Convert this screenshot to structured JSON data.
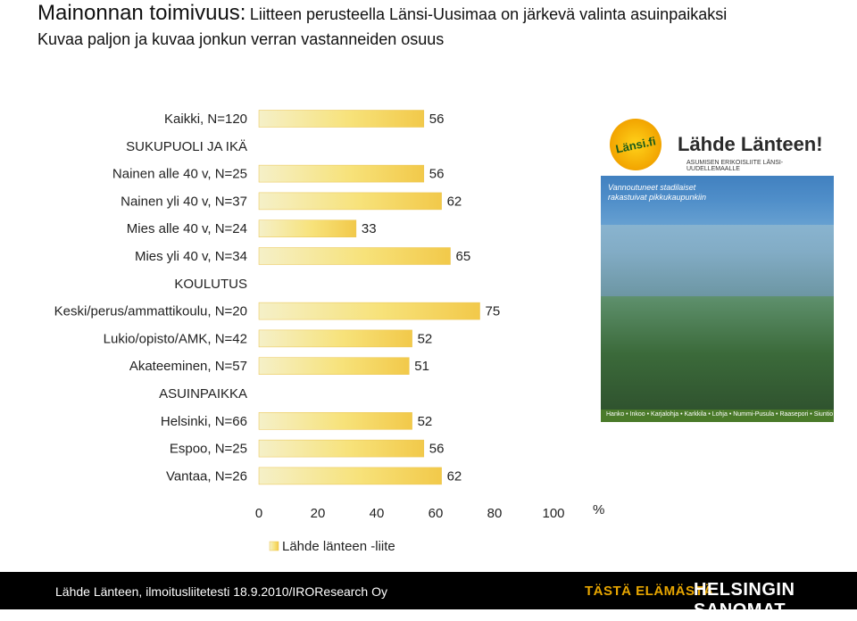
{
  "header": {
    "title_main": "Mainonnan toimivuus:",
    "title_sub": "Liitteen perusteella Länsi-Uusimaa on järkevä valinta asuinpaikaksi",
    "subtitle": "Kuvaa paljon ja kuvaa jonkun verran vastanneiden osuus"
  },
  "chart_data": {
    "type": "bar",
    "orientation": "horizontal",
    "categories": [
      "Kaikki, N=120",
      "SUKUPUOLI JA IKÄ",
      "Nainen alle 40 v, N=25",
      "Nainen yli 40 v, N=37",
      "Mies alle 40 v, N=24",
      "Mies yli 40 v, N=34",
      "KOULUTUS",
      "Keski/perus/ammattikoulu, N=20",
      "Lukio/opisto/AMK, N=42",
      "Akateeminen, N=57",
      "ASUINPAIKKA",
      "Helsinki, N=66",
      "Espoo, N=25",
      "Vantaa, N=26"
    ],
    "series": [
      {
        "name": "Lähde länteen -liite",
        "values": [
          56,
          null,
          56,
          62,
          33,
          65,
          null,
          75,
          52,
          51,
          null,
          52,
          56,
          62
        ],
        "value_labels": [
          "56",
          "",
          "56",
          "62",
          "33",
          "65",
          "",
          "75",
          "52",
          "51",
          "",
          "52",
          "56",
          "62"
        ]
      }
    ],
    "xlim": [
      0,
      100
    ],
    "xticks": [
      "0",
      "20",
      "40",
      "60",
      "80",
      "100"
    ],
    "unit_label": "%",
    "grid": false,
    "legend_position": "bottom",
    "bar_color": "#f5d35a"
  },
  "cover_image": {
    "logo_text": "Länsi.fi",
    "heading": "Lähde Länteen!",
    "tagline": "ASUMISEN ERIKOISLIITE LÄNSI-UUDELLEMAALLE",
    "headline": "Vannoutuneet stadilaiset rakastuivat pikkukaupunkiin",
    "strip_text": "Hanko • Inkoo • Karjalohja • Karkkila • Lohja • Nummi-Pusula • Raasepori • Siuntio"
  },
  "footer": {
    "source": "Lähde Länteen, ilmoitusliitetesti 18.9.2010/IROResearch Oy",
    "slogan": "TÄSTÄ ELÄMÄSTÄ.",
    "brand": "HELSINGIN SANOMAT",
    "background": "#000000"
  }
}
